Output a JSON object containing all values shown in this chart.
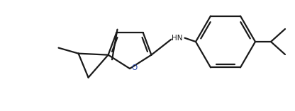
{
  "bg_color": "#ffffff",
  "line_color": "#1a1a1a",
  "line_width": 1.6,
  "figsize": [
    4.16,
    1.57
  ],
  "dpi": 100,
  "nh_text": "HN",
  "o_text": "O"
}
